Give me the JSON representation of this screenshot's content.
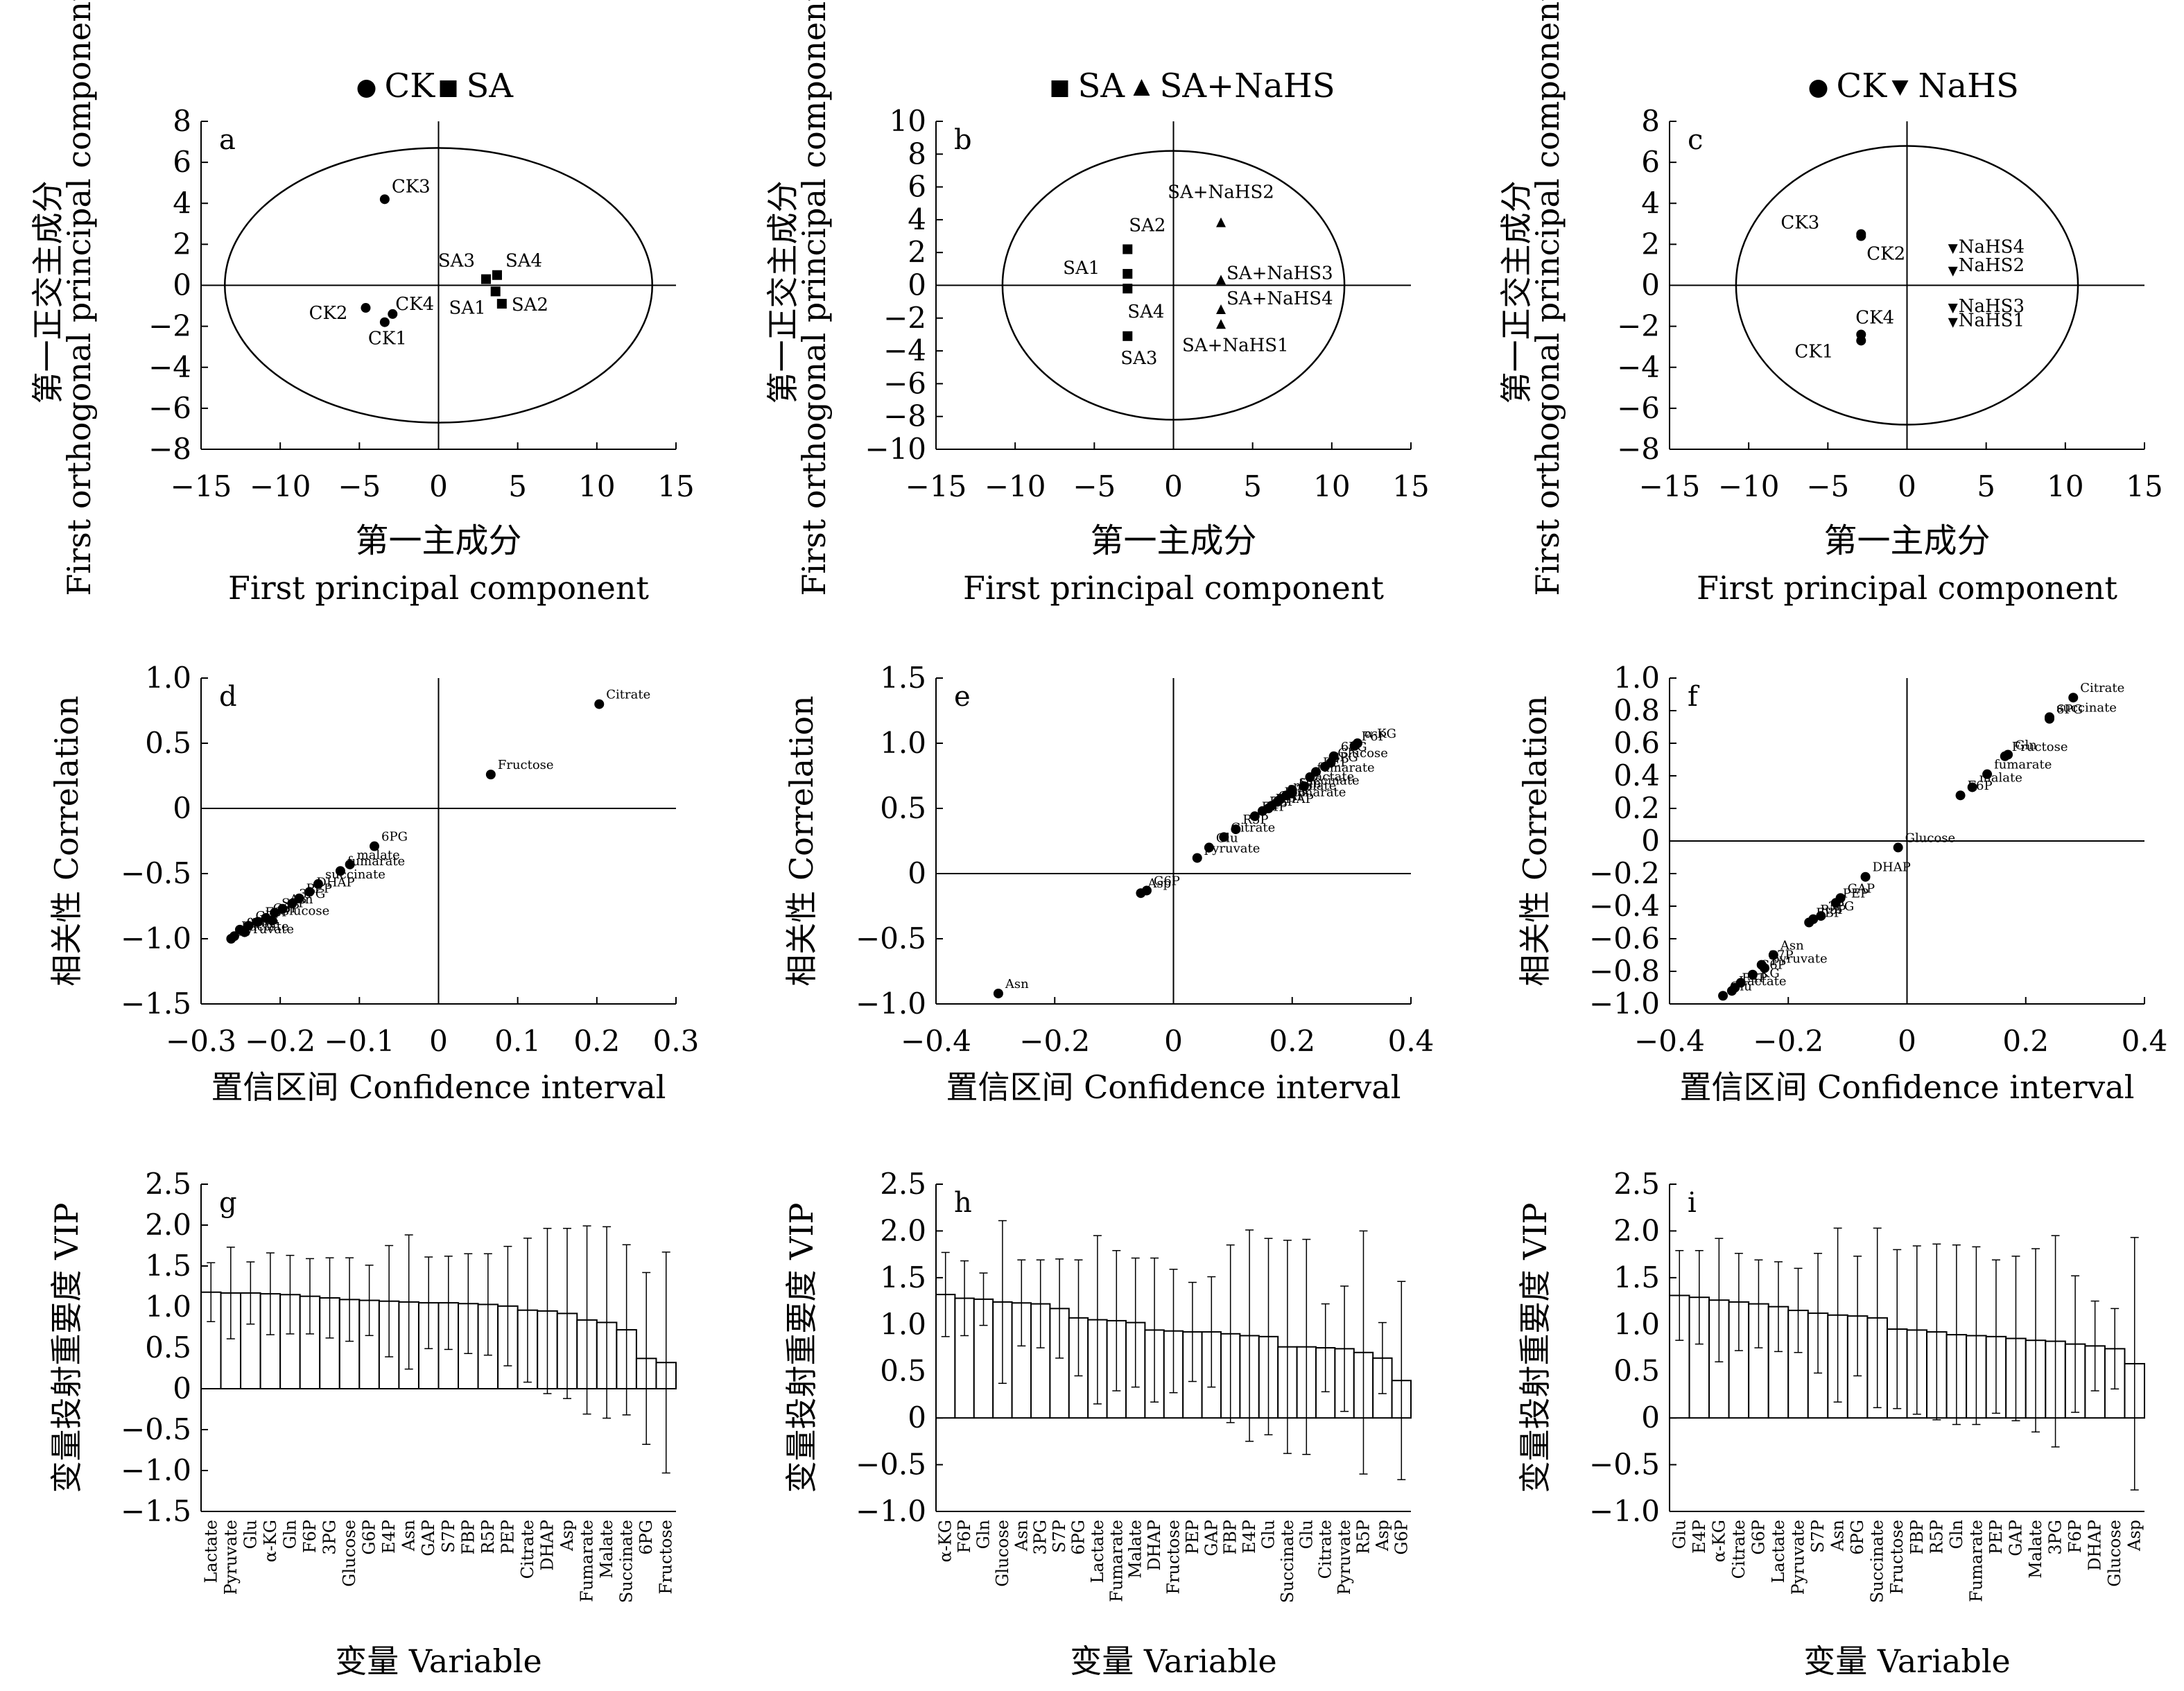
{
  "chart_data": [
    {
      "type": "scatter",
      "panel": "a",
      "title": "",
      "legend": [
        "CK",
        "SA"
      ],
      "legend_placement": "top-center",
      "xlabel": [
        "第一主成分",
        "First principal component"
      ],
      "ylabel": [
        "第一正交主成分",
        "First orthogonal principal component"
      ],
      "xlim": [
        -15,
        15
      ],
      "ylim": [
        -8,
        8
      ],
      "xticks": [
        "−15",
        "−10",
        "−5",
        "0",
        "5",
        "10",
        "15"
      ],
      "yticks": [
        "−8",
        "−6",
        "−4",
        "−2",
        "0",
        "2",
        "4",
        "6",
        "8"
      ],
      "ellipse": {
        "rx": 13.5,
        "ry": 6.7
      },
      "series": [
        {
          "name": "CK",
          "marker": "circle",
          "points": [
            {
              "label": "CK3",
              "x": -3.4,
              "y": 4.2
            },
            {
              "label": "CK2",
              "x": -4.6,
              "y": -1.1
            },
            {
              "label": "CK4",
              "x": -2.9,
              "y": -1.4
            },
            {
              "label": "CK1",
              "x": -3.4,
              "y": -1.8
            }
          ]
        },
        {
          "name": "SA",
          "marker": "square",
          "points": [
            {
              "label": "SA3",
              "x": 3.0,
              "y": 0.3
            },
            {
              "label": "SA4",
              "x": 3.7,
              "y": 0.5
            },
            {
              "label": "SA1",
              "x": 3.6,
              "y": -0.3
            },
            {
              "label": "SA2",
              "x": 4.0,
              "y": -0.9
            }
          ]
        }
      ]
    },
    {
      "type": "scatter",
      "panel": "b",
      "title": "",
      "legend": [
        "SA",
        "SA+NaHS"
      ],
      "legend_placement": "top-center",
      "xlabel": [
        "第一主成分",
        "First principal component"
      ],
      "ylabel": [
        "第一正交主成分",
        "First orthogonal principal component"
      ],
      "xlim": [
        -15,
        15
      ],
      "ylim": [
        -10,
        10
      ],
      "xticks": [
        "−15",
        "−10",
        "−5",
        "0",
        "5",
        "10",
        "15"
      ],
      "yticks": [
        "−10",
        "−8",
        "−6",
        "−4",
        "−2",
        "0",
        "2",
        "4",
        "6",
        "8",
        "10"
      ],
      "ellipse": {
        "rx": 10.8,
        "ry": 8.2
      },
      "series": [
        {
          "name": "SA",
          "marker": "square",
          "points": [
            {
              "label": "SA2",
              "x": -2.9,
              "y": 2.2
            },
            {
              "label": "SA1",
              "x": -2.9,
              "y": 0.7
            },
            {
              "label": "SA4",
              "x": -2.9,
              "y": -0.2
            },
            {
              "label": "SA3",
              "x": -2.9,
              "y": -3.1
            }
          ]
        },
        {
          "name": "SA+NaHS",
          "marker": "triangle",
          "points": [
            {
              "label": "SA+NaHS2",
              "x": 3.0,
              "y": 3.8
            },
            {
              "label": "SA+NaHS3",
              "x": 3.0,
              "y": 0.3
            },
            {
              "label": "SA+NaHS4",
              "x": 3.0,
              "y": -1.5
            },
            {
              "label": "SA+NaHS1",
              "x": 3.0,
              "y": -2.4
            }
          ]
        }
      ]
    },
    {
      "type": "scatter",
      "panel": "c",
      "title": "",
      "legend": [
        "CK",
        "NaHS"
      ],
      "legend_placement": "top-center",
      "xlabel": [
        "第一主成分",
        "First principal component"
      ],
      "ylabel": [
        "第一正交主成分",
        "First orthogonal principal component"
      ],
      "xlim": [
        -15,
        15
      ],
      "ylim": [
        -8,
        8
      ],
      "xticks": [
        "−15",
        "−10",
        "−5",
        "0",
        "5",
        "10",
        "15"
      ],
      "yticks": [
        "−8",
        "−6",
        "−4",
        "−2",
        "0",
        "2",
        "4",
        "6",
        "8"
      ],
      "ellipse": {
        "rx": 10.8,
        "ry": 6.8
      },
      "series": [
        {
          "name": "CK",
          "marker": "circle",
          "points": [
            {
              "label": "CK3",
              "x": -2.9,
              "y": 2.5
            },
            {
              "label": "CK2",
              "x": -2.9,
              "y": 2.4
            },
            {
              "label": "CK4",
              "x": -2.9,
              "y": -2.4
            },
            {
              "label": "CK1",
              "x": -2.9,
              "y": -2.7
            }
          ]
        },
        {
          "name": "NaHS",
          "marker": "triangle-down",
          "points": [
            {
              "label": "NaHS4",
              "x": 2.9,
              "y": 1.8
            },
            {
              "label": "NaHS2",
              "x": 2.9,
              "y": 0.7
            },
            {
              "label": "NaHS3",
              "x": 2.9,
              "y": -1.1
            },
            {
              "label": "NaHS1",
              "x": 2.9,
              "y": -1.8
            }
          ]
        }
      ]
    },
    {
      "type": "scatter",
      "panel": "d",
      "title": "",
      "legend": [],
      "xlabel": [
        "置信区间 Confidence interval"
      ],
      "ylabel": [
        "相关性 Correlation"
      ],
      "xlim": [
        -0.3,
        0.3
      ],
      "ylim": [
        -1.5,
        1.0
      ],
      "xticks": [
        "−0.3",
        "−0.2",
        "−0.1",
        "0",
        "0.1",
        "0.2",
        "0.3"
      ],
      "yticks": [
        "−1.5",
        "−1.0",
        "−0.5",
        "0",
        "0.5",
        "1.0"
      ],
      "series": [
        {
          "name": "",
          "marker": "circle",
          "points": [
            {
              "label": "Citrate",
              "x": 0.203,
              "y": 0.8
            },
            {
              "label": "Fructose",
              "x": 0.066,
              "y": 0.26
            },
            {
              "label": "6PG",
              "x": -0.081,
              "y": -0.29
            },
            {
              "label": "malate",
              "x": -0.112,
              "y": -0.43
            },
            {
              "label": "fumarate",
              "x": -0.124,
              "y": -0.48
            },
            {
              "label": "succinate",
              "x": -0.152,
              "y": -0.58
            },
            {
              "label": "DHAP",
              "x": -0.163,
              "y": -0.64
            },
            {
              "label": "PEP",
              "x": -0.176,
              "y": -0.69
            },
            {
              "label": "3PG",
              "x": -0.185,
              "y": -0.73
            },
            {
              "label": "Asn",
              "x": -0.197,
              "y": -0.77
            },
            {
              "label": "S7P",
              "x": -0.207,
              "y": -0.8
            },
            {
              "label": "G6P",
              "x": -0.218,
              "y": -0.84
            },
            {
              "label": "F6P",
              "x": -0.228,
              "y": -0.87
            },
            {
              "label": "Glu",
              "x": -0.24,
              "y": -0.9
            },
            {
              "label": "α-KG",
              "x": -0.251,
              "y": -0.93
            },
            {
              "label": "Gln",
              "x": -0.245,
              "y": -0.95
            },
            {
              "label": "Lactate",
              "x": -0.258,
              "y": -0.98
            },
            {
              "label": "pyruvate",
              "x": -0.262,
              "y": -1.0
            },
            {
              "label": "Glucose",
              "x": -0.21,
              "y": -0.86
            }
          ]
        }
      ]
    },
    {
      "type": "scatter",
      "panel": "e",
      "title": "",
      "legend": [],
      "xlabel": [
        "置信区间 Confidence interval"
      ],
      "ylabel": [
        "相关性 Correlation"
      ],
      "xlim": [
        -0.4,
        0.4
      ],
      "ylim": [
        -1.0,
        1.5
      ],
      "xticks": [
        "−0.4",
        "−0.2",
        "0",
        "0.2",
        "0.4"
      ],
      "yticks": [
        "−1.0",
        "−0.5",
        "0",
        "0.5",
        "1.0",
        "1.5"
      ],
      "series": [
        {
          "name": "",
          "marker": "circle",
          "points": [
            {
              "label": "Asn",
              "x": -0.295,
              "y": -0.92
            },
            {
              "label": "Asp",
              "x": -0.055,
              "y": -0.15
            },
            {
              "label": "G6P",
              "x": -0.045,
              "y": -0.13
            },
            {
              "label": "pyruvate",
              "x": 0.04,
              "y": 0.12
            },
            {
              "label": "Glu",
              "x": 0.06,
              "y": 0.2
            },
            {
              "label": "Citrate",
              "x": 0.085,
              "y": 0.28
            },
            {
              "label": "R5P",
              "x": 0.105,
              "y": 0.34
            },
            {
              "label": "E4P",
              "x": 0.137,
              "y": 0.44
            },
            {
              "label": "Gln",
              "x": 0.2,
              "y": 0.62
            },
            {
              "label": "3PG",
              "x": 0.255,
              "y": 0.82
            },
            {
              "label": "6PG",
              "x": 0.27,
              "y": 0.9
            },
            {
              "label": "α-KG",
              "x": 0.31,
              "y": 1.0
            },
            {
              "label": "F6P",
              "x": 0.305,
              "y": 0.98
            },
            {
              "label": "Glucose",
              "x": 0.265,
              "y": 0.85
            },
            {
              "label": "lactate",
              "x": 0.22,
              "y": 0.67
            },
            {
              "label": "malate",
              "x": 0.19,
              "y": 0.6
            },
            {
              "label": "Fumarate",
              "x": 0.175,
              "y": 0.55
            },
            {
              "label": "DHAP",
              "x": 0.16,
              "y": 0.5
            },
            {
              "label": "fumarate",
              "x": 0.23,
              "y": 0.74
            },
            {
              "label": "FBP",
              "x": 0.15,
              "y": 0.48
            },
            {
              "label": "GAP",
              "x": 0.165,
              "y": 0.52
            },
            {
              "label": "S7P",
              "x": 0.18,
              "y": 0.57
            },
            {
              "label": "PEP",
              "x": 0.24,
              "y": 0.78
            },
            {
              "label": "succinate",
              "x": 0.2,
              "y": 0.64
            }
          ]
        }
      ]
    },
    {
      "type": "scatter",
      "panel": "f",
      "title": "",
      "legend": [],
      "xlabel": [
        "置信区间 Confidence interval"
      ],
      "ylabel": [
        "相关性 Correlation"
      ],
      "xlim": [
        -0.4,
        0.4
      ],
      "ylim": [
        -1.0,
        1.0
      ],
      "xticks": [
        "−0.4",
        "−0.2",
        "0",
        "0.2",
        "0.4"
      ],
      "yticks": [
        "−1.0",
        "−0.8",
        "−0.6",
        "−0.4",
        "−0.2",
        "0",
        "0.2",
        "0.4",
        "0.6",
        "0.8",
        "1.0"
      ],
      "series": [
        {
          "name": "",
          "marker": "circle",
          "points": [
            {
              "label": "Citrate",
              "x": 0.28,
              "y": 0.88
            },
            {
              "label": "succinate",
              "x": 0.24,
              "y": 0.76
            },
            {
              "label": "6PG",
              "x": 0.24,
              "y": 0.75
            },
            {
              "label": "Gln",
              "x": 0.17,
              "y": 0.53
            },
            {
              "label": "Fructose",
              "x": 0.165,
              "y": 0.52
            },
            {
              "label": "fumarate",
              "x": 0.135,
              "y": 0.41
            },
            {
              "label": "malate",
              "x": 0.11,
              "y": 0.33
            },
            {
              "label": "F6P",
              "x": 0.09,
              "y": 0.28
            },
            {
              "label": "Glucose",
              "x": -0.015,
              "y": -0.04
            },
            {
              "label": "DHAP",
              "x": -0.07,
              "y": -0.22
            },
            {
              "label": "GAP",
              "x": -0.112,
              "y": -0.35
            },
            {
              "label": "PEP",
              "x": -0.12,
              "y": -0.38
            },
            {
              "label": "R5P",
              "x": -0.158,
              "y": -0.48
            },
            {
              "label": "FBP",
              "x": -0.165,
              "y": -0.5
            },
            {
              "label": "3PG",
              "x": -0.145,
              "y": -0.46
            },
            {
              "label": "Asn",
              "x": -0.225,
              "y": -0.7
            },
            {
              "label": "S7P",
              "x": -0.245,
              "y": -0.76
            },
            {
              "label": "pyruvate",
              "x": -0.24,
              "y": -0.78
            },
            {
              "label": "G6P",
              "x": -0.26,
              "y": -0.82
            },
            {
              "label": "α-KG",
              "x": -0.28,
              "y": -0.87
            },
            {
              "label": "Lactate",
              "x": -0.295,
              "y": -0.92
            },
            {
              "label": "E4P",
              "x": -0.29,
              "y": -0.9
            },
            {
              "label": "Glu",
              "x": -0.31,
              "y": -0.95
            }
          ]
        }
      ]
    },
    {
      "type": "bar",
      "panel": "g",
      "title": "",
      "legend": [],
      "xlabel": [
        "变量 Variable"
      ],
      "ylabel": [
        "变量投射重要度 VIP"
      ],
      "ylim": [
        -1.5,
        2.5
      ],
      "yticks": [
        "−1.5",
        "−1.0",
        "−0.5",
        "0",
        "0.5",
        "1.0",
        "1.5",
        "2.0",
        "2.5"
      ],
      "categories": [
        "Lactate",
        "Pyruvate",
        "Glu",
        "α-KG",
        "Gln",
        "F6P",
        "3PG",
        "Glucose",
        "G6P",
        "E4P",
        "Asn",
        "GAP",
        "S7P",
        "FBP",
        "R5P",
        "PEP",
        "Citrate",
        "DHAP",
        "Asp",
        "Fumarate",
        "Malate",
        "Succinate",
        "6PG",
        "Fructose"
      ],
      "values": [
        1.18,
        1.17,
        1.17,
        1.16,
        1.15,
        1.13,
        1.11,
        1.09,
        1.08,
        1.07,
        1.06,
        1.05,
        1.05,
        1.04,
        1.03,
        1.01,
        0.96,
        0.95,
        0.92,
        0.84,
        0.81,
        0.72,
        0.37,
        0.32
      ],
      "err": [
        0.36,
        0.56,
        0.38,
        0.5,
        0.48,
        0.46,
        0.49,
        0.51,
        0.43,
        0.68,
        0.82,
        0.56,
        0.57,
        0.61,
        0.62,
        0.73,
        0.88,
        1.01,
        1.04,
        1.15,
        1.17,
        1.04,
        1.05,
        1.35
      ]
    },
    {
      "type": "bar",
      "panel": "h",
      "title": "",
      "legend": [],
      "xlabel": [
        "变量 Variable"
      ],
      "ylabel": [
        "变量投射重要度 VIP"
      ],
      "ylim": [
        -1.0,
        2.5
      ],
      "yticks": [
        "−1.0",
        "−0.5",
        "0",
        "0.5",
        "1.0",
        "1.5",
        "2.0",
        "2.5"
      ],
      "categories": [
        "α-KG",
        "F6P",
        "Gln",
        "Glucose",
        "Asn",
        "3PG",
        "S7P",
        "6PG",
        "Lactate",
        "Fumarate",
        "Malate",
        "DHAP",
        "Fructose",
        "PEP",
        "GAP",
        "FBP",
        "E4P",
        "Glu",
        "Succinate",
        "Glu",
        "Citrate",
        "Pyruvate",
        "R5P",
        "Asp",
        "G6P"
      ],
      "values": [
        1.32,
        1.28,
        1.27,
        1.24,
        1.23,
        1.22,
        1.17,
        1.07,
        1.05,
        1.04,
        1.02,
        0.94,
        0.93,
        0.92,
        0.92,
        0.9,
        0.88,
        0.87,
        0.76,
        0.76,
        0.75,
        0.74,
        0.7,
        0.64,
        0.4
      ],
      "err": [
        0.45,
        0.4,
        0.28,
        0.87,
        0.46,
        0.47,
        0.53,
        0.62,
        0.9,
        0.75,
        0.69,
        0.77,
        0.66,
        0.53,
        0.59,
        0.95,
        1.13,
        1.05,
        1.14,
        1.15,
        0.47,
        0.67,
        1.3,
        0.38,
        1.06
      ]
    },
    {
      "type": "bar",
      "panel": "i",
      "title": "",
      "legend": [],
      "xlabel": [
        "变量 Variable"
      ],
      "ylabel": [
        "变量投射重要度 VIP"
      ],
      "ylim": [
        -1.0,
        2.5
      ],
      "yticks": [
        "−1.0",
        "−0.5",
        "0",
        "0.5",
        "1.0",
        "1.5",
        "2.0",
        "2.5"
      ],
      "categories": [
        "Glu",
        "E4P",
        "α-KG",
        "Citrate",
        "G6P",
        "Lactate",
        "Pyruvate",
        "S7P",
        "Asn",
        "6PG",
        "Succinate",
        "Fructose",
        "FBP",
        "R5P",
        "Gln",
        "Fumarate",
        "PEP",
        "GAP",
        "Malate",
        "3PG",
        "F6P",
        "DHAP",
        "Glucose",
        "Asp"
      ],
      "values": [
        1.31,
        1.29,
        1.26,
        1.24,
        1.22,
        1.19,
        1.15,
        1.12,
        1.1,
        1.09,
        1.07,
        0.95,
        0.94,
        0.92,
        0.89,
        0.88,
        0.87,
        0.85,
        0.83,
        0.82,
        0.79,
        0.77,
        0.74,
        0.58
      ],
      "err": [
        0.48,
        0.5,
        0.66,
        0.52,
        0.47,
        0.48,
        0.45,
        0.64,
        0.93,
        0.64,
        0.96,
        0.85,
        0.9,
        0.94,
        0.96,
        0.95,
        0.82,
        0.88,
        0.98,
        1.13,
        0.73,
        0.48,
        0.43,
        1.35
      ]
    }
  ]
}
